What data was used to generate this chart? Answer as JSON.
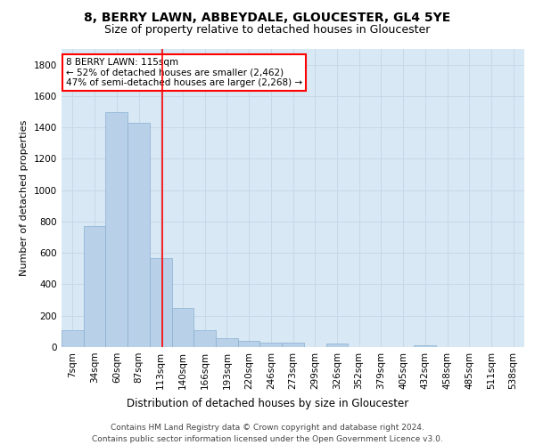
{
  "title1": "8, BERRY LAWN, ABBEYDALE, GLOUCESTER, GL4 5YE",
  "title2": "Size of property relative to detached houses in Gloucester",
  "xlabel": "Distribution of detached houses by size in Gloucester",
  "ylabel": "Number of detached properties",
  "bar_color": "#b8d0e8",
  "bar_edge_color": "#8ab0d0",
  "grid_color": "#c8d8e8",
  "background_color": "#d8e8f5",
  "categories": [
    "7sqm",
    "34sqm",
    "60sqm",
    "87sqm",
    "113sqm",
    "140sqm",
    "166sqm",
    "193sqm",
    "220sqm",
    "246sqm",
    "273sqm",
    "299sqm",
    "326sqm",
    "352sqm",
    "379sqm",
    "405sqm",
    "432sqm",
    "458sqm",
    "485sqm",
    "511sqm",
    "538sqm"
  ],
  "values": [
    110,
    770,
    1500,
    1430,
    570,
    250,
    110,
    55,
    40,
    30,
    30,
    0,
    20,
    0,
    0,
    0,
    10,
    0,
    0,
    0,
    0
  ],
  "property_sqm": 115,
  "annotation_line1": "8 BERRY LAWN: 115sqm",
  "annotation_line2": "← 52% of detached houses are smaller (2,462)",
  "annotation_line3": "47% of semi-detached houses are larger (2,268) →",
  "annotation_box_color": "white",
  "annotation_box_edge_color": "red",
  "vline_color": "red",
  "ylim": [
    0,
    1900
  ],
  "yticks": [
    0,
    200,
    400,
    600,
    800,
    1000,
    1200,
    1400,
    1600,
    1800
  ],
  "footer1": "Contains HM Land Registry data © Crown copyright and database right 2024.",
  "footer2": "Contains public sector information licensed under the Open Government Licence v3.0.",
  "title1_fontsize": 10,
  "title2_fontsize": 9,
  "xlabel_fontsize": 8.5,
  "ylabel_fontsize": 8,
  "tick_fontsize": 7.5,
  "annotation_fontsize": 7.5,
  "footer_fontsize": 6.5
}
